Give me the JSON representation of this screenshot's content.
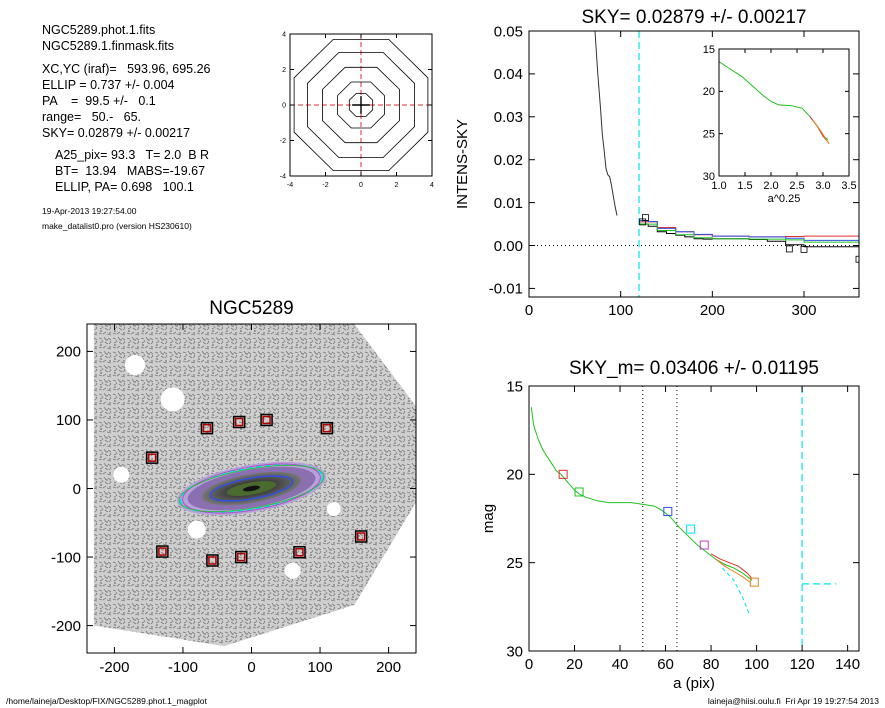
{
  "info": {
    "file1": "NGC5289.phot.1.fits",
    "file2": "NGC5289.1.finmask.fits",
    "xcyc": "XC,YC (iraf)=   593.96, 695.26",
    "ellip": "ELLIP = 0.737 +/- 0.004",
    "pa": "PA    =  99.5 +/-   0.1",
    "range": "range=   50.-   65.",
    "sky": "SKY= 0.02879 +/- 0.00217",
    "a25": "A25_pix= 93.3   T= 2.0  B R",
    "bt": "BT=  13.94   MABS=-19.67",
    "ellip_pa": "ELLIP, PA= 0.698   100.1",
    "date": "19-Apr-2013 19:27:54.00",
    "program": "make_datalist0.pro (version HS230610)"
  },
  "footer": {
    "left": "/home/laineja/Desktop/FIX/NGC5289.phot.1_magplot",
    "right": "laineja@hiisi.oulu.fi  Fri Apr 19 19:27:54 2013"
  },
  "colors": {
    "axis": "#000000",
    "cyan": "#00e5ee",
    "red": "#e03030",
    "green": "#20c020",
    "blue": "#3050e0",
    "magenta": "#c040c0",
    "orange": "#e08020",
    "gray": "#888888"
  },
  "chart_data": [
    {
      "id": "contour",
      "type": "line",
      "xlim": [
        -4,
        4
      ],
      "ylim": [
        -4,
        4
      ],
      "xticks": [
        -4,
        -2,
        0,
        2,
        4
      ],
      "yticks": [
        -4,
        -2,
        0,
        2,
        4
      ],
      "contour_radii": [
        0.7,
        1.4,
        2.3,
        3.2,
        4.0
      ]
    },
    {
      "id": "sky",
      "type": "line",
      "title": "SKY= 0.02879 +/- 0.00217",
      "ylabel": "INTENS-SKY",
      "xlim": [
        0,
        360
      ],
      "ylim": [
        -0.012,
        0.05
      ],
      "xticks": [
        0,
        100,
        200,
        300
      ],
      "yticks": [
        -0.01,
        0.0,
        0.01,
        0.02,
        0.03,
        0.04,
        0.05
      ],
      "ytick_labels": [
        "-0.01",
        "0.00",
        "0.01",
        "0.02",
        "0.03",
        "0.04",
        "0.05"
      ],
      "vline_x": 120,
      "profile": {
        "x": [
          72,
          75,
          78,
          80,
          82,
          84,
          86,
          88,
          90,
          92,
          94,
          96
        ],
        "y": [
          0.05,
          0.04,
          0.032,
          0.026,
          0.022,
          0.018,
          0.0165,
          0.016,
          0.014,
          0.0115,
          0.009,
          0.007
        ]
      },
      "series": [
        {
          "name": "",
          "color": "black",
          "x": [
            120,
            130,
            140,
            150,
            160,
            170,
            180,
            190,
            200,
            220,
            240,
            260,
            280,
            300,
            360
          ],
          "y": [
            0.005,
            0.0045,
            0.0032,
            0.0028,
            0.0024,
            0.002,
            0.0016,
            0.0015,
            0.0016,
            0.0016,
            0.0014,
            0.001,
            0.0002,
            -0.0003,
            -0.0003
          ]
        },
        {
          "name": "",
          "color": "red",
          "x": [
            120,
            140,
            160,
            180,
            200,
            240,
            280,
            300,
            360
          ],
          "y": [
            0.0055,
            0.0042,
            0.0032,
            0.0025,
            0.0022,
            0.002,
            0.0021,
            0.0022,
            0.0022
          ]
        },
        {
          "name": "",
          "color": "blue",
          "x": [
            120,
            130,
            140,
            160,
            180,
            200,
            240,
            280,
            300,
            360
          ],
          "y": [
            0.0058,
            0.0056,
            0.004,
            0.0032,
            0.0026,
            0.0022,
            0.002,
            0.0017,
            0.0012,
            0.0008
          ]
        },
        {
          "name": "",
          "color": "green",
          "x": [
            120,
            140,
            160,
            180,
            200,
            240,
            280,
            300,
            360
          ],
          "y": [
            0.005,
            0.0035,
            0.0025,
            0.0018,
            0.0016,
            0.0015,
            0.0013,
            0.0008,
            0.0005
          ]
        }
      ],
      "squares": [
        {
          "x": 124,
          "y": 0.0055
        },
        {
          "x": 127,
          "y": 0.0065
        },
        {
          "x": 284,
          "y": -0.0008
        },
        {
          "x": 300,
          "y": -0.0009
        },
        {
          "x": 360,
          "y": -0.0032
        }
      ]
    },
    {
      "id": "inset",
      "type": "line",
      "xlabel": "a^0.25",
      "xlim": [
        1.0,
        3.5
      ],
      "ylim": [
        15,
        30
      ],
      "xticks": [
        1.0,
        1.5,
        2.0,
        2.5,
        3.0,
        3.5
      ],
      "xtick_labels": [
        "1.0",
        "1.5",
        "2.0",
        "2.5",
        "3.0",
        "3.5"
      ],
      "yticks": [
        15,
        20,
        25,
        30
      ],
      "series": [
        {
          "name": "",
          "color": "green",
          "x": [
            1.0,
            1.2,
            1.45,
            1.65,
            1.85,
            2.0,
            2.15,
            2.4,
            2.6,
            2.75,
            2.9,
            3.0,
            3.05,
            3.1
          ],
          "y": [
            16.5,
            17.3,
            18.3,
            19.4,
            20.5,
            21.2,
            21.6,
            21.7,
            22.0,
            23.0,
            24.2,
            25.2,
            25.5,
            25.7
          ]
        },
        {
          "name": "",
          "color": "red",
          "x": [
            2.75,
            2.9,
            3.0,
            3.1
          ],
          "y": [
            23.0,
            24.2,
            25.3,
            26.0
          ]
        },
        {
          "name": "",
          "color": "orange",
          "x": [
            2.8,
            2.95,
            3.05,
            3.12
          ],
          "y": [
            23.4,
            24.6,
            25.6,
            26.2
          ]
        }
      ]
    },
    {
      "id": "image",
      "type": "scatter",
      "title": "NGC5289",
      "xlim": [
        -240,
        240
      ],
      "ylim": [
        -240,
        240
      ],
      "xticks": [
        -200,
        -100,
        0,
        100,
        200
      ],
      "yticks": [
        -200,
        -100,
        0,
        100,
        200
      ],
      "ellipse": {
        "x": 0,
        "y": 0,
        "rx": 105,
        "ry": 30,
        "angle_deg": 10
      },
      "squares": [
        {
          "x": -145,
          "y": 45
        },
        {
          "x": -65,
          "y": 88
        },
        {
          "x": -18,
          "y": 97
        },
        {
          "x": 22,
          "y": 100
        },
        {
          "x": 110,
          "y": 88
        },
        {
          "x": 160,
          "y": -70
        },
        {
          "x": -130,
          "y": -92
        },
        {
          "x": -57,
          "y": -105
        },
        {
          "x": -15,
          "y": -100
        },
        {
          "x": 70,
          "y": -93
        }
      ]
    },
    {
      "id": "mag",
      "type": "line",
      "title": "SKY_m=  0.03406 +/- 0.01195",
      "xlabel": "a (pix)",
      "ylabel": "mag",
      "xlim": [
        0,
        145
      ],
      "ylim": [
        15,
        30
      ],
      "xticks": [
        0,
        20,
        40,
        60,
        80,
        100,
        120,
        140
      ],
      "yticks": [
        15,
        20,
        25,
        30
      ],
      "dotted_vlines": [
        50,
        65
      ],
      "dashed_vline": 120,
      "sky_level": {
        "x": [
          120,
          135
        ],
        "y": [
          26.2,
          26.2
        ]
      },
      "series": [
        {
          "name": "",
          "color": "green",
          "x": [
            1,
            2,
            4,
            6,
            8,
            10,
            12,
            14,
            16,
            18,
            20,
            22,
            25,
            30,
            35,
            40,
            45,
            50,
            55,
            58,
            62,
            66,
            70,
            74,
            78,
            82,
            86,
            90,
            94,
            98
          ],
          "y": [
            16.2,
            17.2,
            18.0,
            18.6,
            19.0,
            19.4,
            19.8,
            20.0,
            20.3,
            20.6,
            20.9,
            21.1,
            21.3,
            21.5,
            21.6,
            21.6,
            21.6,
            21.7,
            21.8,
            22.0,
            22.4,
            23.0,
            23.5,
            24.0,
            24.4,
            24.8,
            25.1,
            25.3,
            25.6,
            26.0
          ]
        },
        {
          "name": "",
          "color": "red",
          "x": [
            80,
            84,
            88,
            92,
            96,
            98
          ],
          "y": [
            24.5,
            24.8,
            25.0,
            25.2,
            25.6,
            25.9
          ]
        },
        {
          "name": "",
          "color": "orange",
          "x": [
            82,
            86,
            90,
            94,
            97
          ],
          "y": [
            24.8,
            25.2,
            25.5,
            25.8,
            26.1
          ]
        },
        {
          "name": "",
          "color": "cyan",
          "x": [
            85,
            90,
            94,
            97
          ],
          "y": [
            25.3,
            26.0,
            27.0,
            28.0
          ]
        }
      ],
      "squares": [
        {
          "x": 15,
          "y": 20.0,
          "color": "red"
        },
        {
          "x": 22,
          "y": 21.0,
          "color": "green"
        },
        {
          "x": 61,
          "y": 22.1,
          "color": "blue"
        },
        {
          "x": 71,
          "y": 23.1,
          "color": "cyan"
        },
        {
          "x": 77,
          "y": 24.0,
          "color": "magenta"
        },
        {
          "x": 99,
          "y": 26.1,
          "color": "orange"
        }
      ]
    }
  ]
}
